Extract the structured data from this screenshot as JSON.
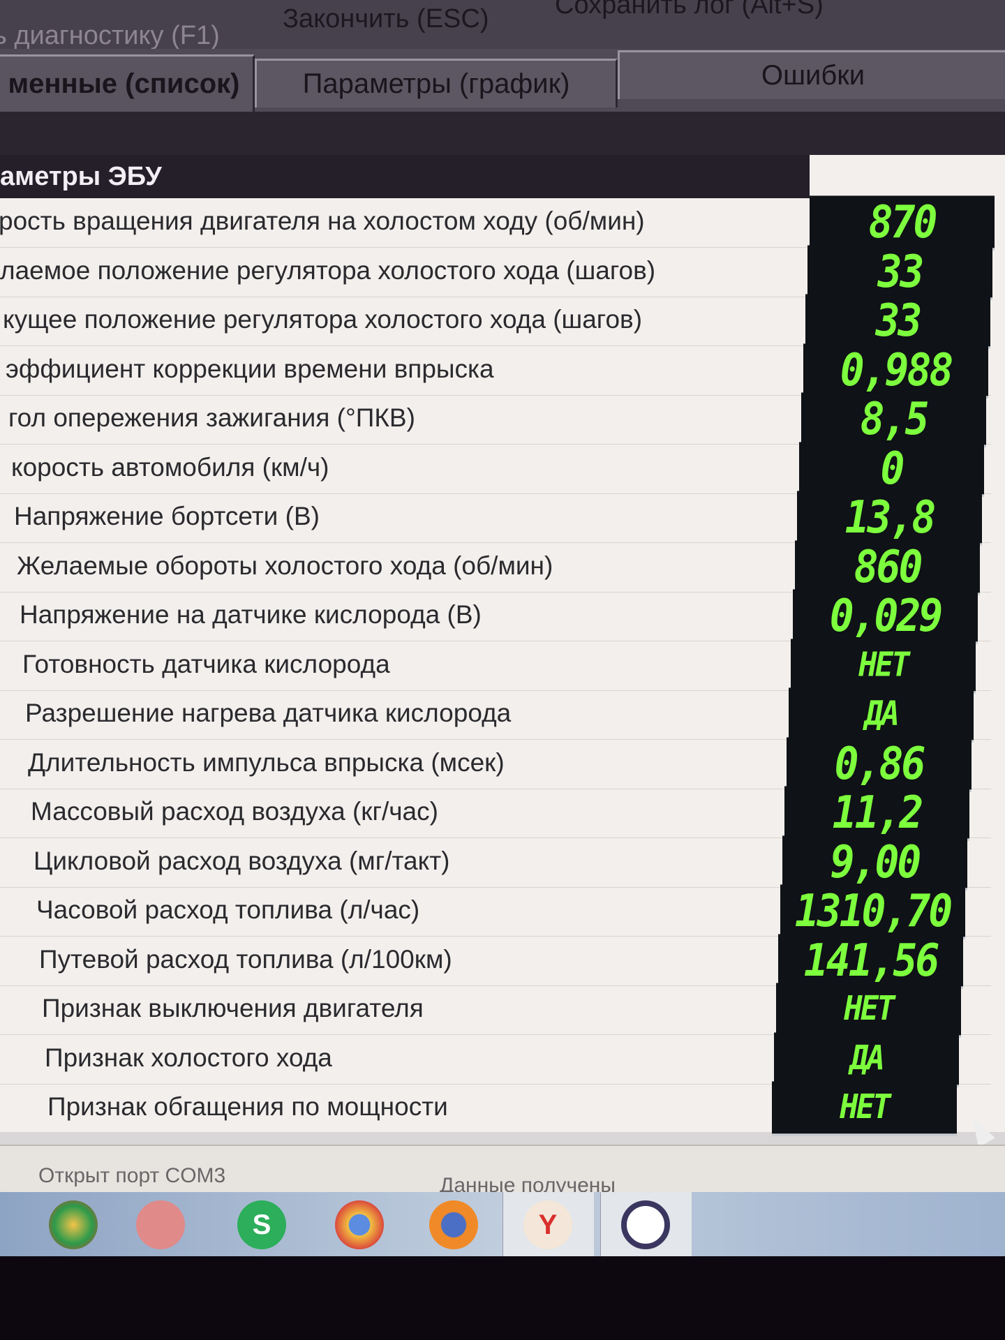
{
  "toolbar": {
    "start_diag": "ь диагностику (F1)",
    "finish": "Закончить (ESC)",
    "save_log": "Сохранить лог (Alt+S)"
  },
  "tabs": [
    {
      "label": "менные (список)",
      "active": true
    },
    {
      "label": "Параметры (график)",
      "active": false
    },
    {
      "label": "Ошибки",
      "active": false
    }
  ],
  "table": {
    "header": "аметры ЭБУ",
    "rows": [
      {
        "label": "рость вращения двигателя на холостом ходу (об/мин)",
        "value": "870"
      },
      {
        "label": "лаемое положение регулятора холостого хода (шагов)",
        "value": "33"
      },
      {
        "label": "кущее положение регулятора холостого хода (шагов)",
        "value": "33"
      },
      {
        "label": "эффициент коррекции времени впрыска",
        "value": "0,988"
      },
      {
        "label": "гол опережения зажигания (°ПКВ)",
        "value": "8,5"
      },
      {
        "label": "корость автомобиля (км/ч)",
        "value": "0"
      },
      {
        "label": "Напряжение бортсети (В)",
        "value": "13,8"
      },
      {
        "label": "Желаемые обороты холостого хода (об/мин)",
        "value": "860"
      },
      {
        "label": "Напряжение на датчике кислорода (В)",
        "value": "0,029"
      },
      {
        "label": "Готовность датчика кислорода",
        "value": "НЕТ"
      },
      {
        "label": "Разрешение нагрева датчика кислорода",
        "value": "ДА"
      },
      {
        "label": "Длительность импульса впрыска (мсек)",
        "value": "0,86"
      },
      {
        "label": "Массовый расход воздуха (кг/час)",
        "value": "11,2"
      },
      {
        "label": "Цикловой расход воздуха (мг/такт)",
        "value": "9,00"
      },
      {
        "label": "Часовой расход топлива (л/час)",
        "value": "1310,70"
      },
      {
        "label": "Путевой расход топлива (л/100км)",
        "value": "141,56"
      },
      {
        "label": "Признак выключения двигателя",
        "value": "НЕТ"
      },
      {
        "label": "Признак холостого хода",
        "value": "ДА"
      },
      {
        "label": "Признак обгащения по мощности",
        "value": "НЕТ"
      }
    ]
  },
  "status": {
    "port": "Открыт порт COM3",
    "data": "Данные получены"
  },
  "taskbar": {
    "icons": [
      "chrome-alt-icon",
      "app-icon",
      "skype-icon",
      "chrome-icon",
      "firefox-icon",
      "yandex-browser-icon",
      "diagnostic-app-icon"
    ],
    "skype_glyph": "S",
    "yandex_glyph": "Y"
  },
  "colors": {
    "value_green": "#7dff3e",
    "value_bg": "#0f1216"
  }
}
